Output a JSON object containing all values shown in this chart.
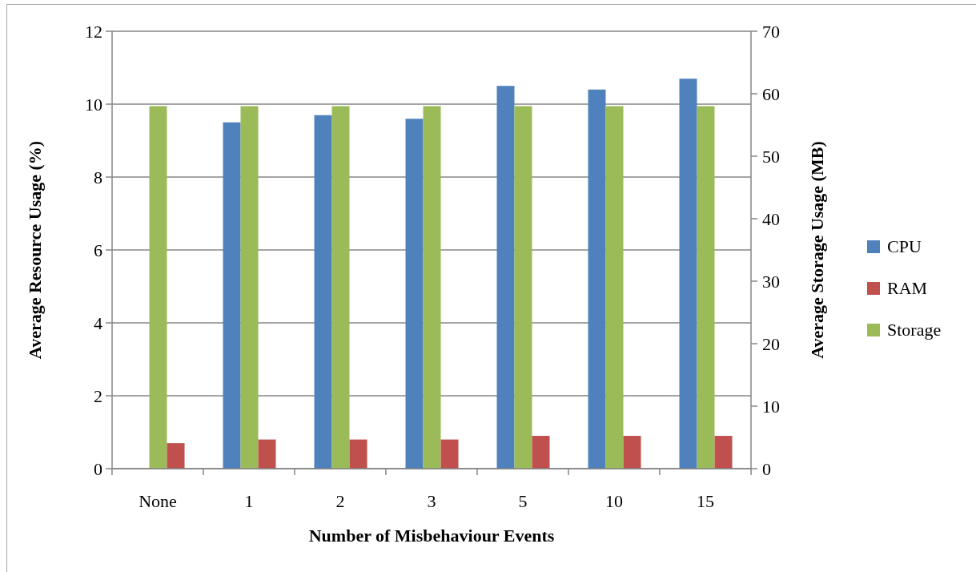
{
  "chart_data": {
    "type": "bar",
    "xlabel": "Number of Misbehaviour Events",
    "ylabel": "Average Resource Usage (%)",
    "y2label": "Average Storage Usage (MB)",
    "categories": [
      "None",
      "1",
      "2",
      "3",
      "5",
      "10",
      "15"
    ],
    "series": [
      {
        "name": "CPU",
        "color": "#4f81bd",
        "values": [
          null,
          9.5,
          9.7,
          9.6,
          10.5,
          10.4,
          10.7
        ]
      },
      {
        "name": "RAM",
        "color": "#c0504d",
        "values": [
          0.7,
          0.8,
          0.8,
          0.8,
          0.9,
          0.9,
          0.9
        ]
      },
      {
        "name": "Storage",
        "color": "#9bbb59",
        "axis": "y2",
        "values": [
          58,
          58,
          58,
          58,
          58,
          58,
          58
        ]
      }
    ],
    "ylim": [
      0,
      12
    ],
    "yticks": [
      0,
      2,
      4,
      6,
      8,
      10,
      12
    ],
    "y2lim": [
      0,
      70
    ],
    "y2ticks": [
      0,
      10,
      20,
      30,
      40,
      50,
      60,
      70
    ],
    "grid": "y",
    "legend": "right"
  }
}
